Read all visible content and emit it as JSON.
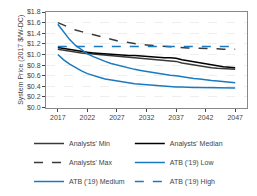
{
  "chart_data": {
    "type": "line",
    "x": [
      2017,
      2018,
      2019,
      2020,
      2021,
      2022,
      2023,
      2024,
      2025,
      2026,
      2027,
      2028,
      2029,
      2030,
      2031,
      2032,
      2033,
      2034,
      2035,
      2036,
      2037,
      2038,
      2039,
      2040,
      2041,
      2042,
      2043,
      2044,
      2045,
      2046,
      2047
    ],
    "series": [
      {
        "name": "Analysts' Min",
        "color": "#3a3a3a",
        "line_style": "solid",
        "values": [
          1.1,
          1.08,
          1.06,
          1.04,
          1.03,
          1.02,
          1.01,
          1.0,
          0.99,
          0.98,
          0.97,
          0.96,
          0.95,
          0.94,
          0.93,
          0.92,
          0.91,
          0.9,
          0.89,
          0.88,
          0.87,
          0.84,
          0.82,
          0.8,
          0.78,
          0.76,
          0.75,
          0.74,
          0.73,
          0.72,
          0.72
        ]
      },
      {
        "name": "Analysts' Median",
        "color": "black",
        "line_style": "solid",
        "values": [
          1.13,
          1.11,
          1.09,
          1.07,
          1.05,
          1.04,
          1.03,
          1.02,
          1.01,
          1.0,
          1.0,
          0.99,
          0.98,
          0.98,
          0.97,
          0.97,
          0.96,
          0.95,
          0.94,
          0.94,
          0.93,
          0.9,
          0.88,
          0.86,
          0.84,
          0.82,
          0.8,
          0.79,
          0.77,
          0.76,
          0.75
        ]
      },
      {
        "name": "Analysts' Max",
        "color": "#3a3a3a",
        "line_style": "dashed",
        "values": [
          1.6,
          1.55,
          1.5,
          1.46,
          1.43,
          1.4,
          1.37,
          1.34,
          1.31,
          1.28,
          1.26,
          1.24,
          1.22,
          1.2,
          1.19,
          1.18,
          1.17,
          1.16,
          1.15,
          1.14,
          1.13,
          1.13,
          1.12,
          1.12,
          1.12,
          1.11,
          1.11,
          1.11,
          1.1,
          1.1,
          1.1
        ]
      },
      {
        "name": "ATB ('19) Low",
        "color": "#1a7abf",
        "line_style": "solid",
        "values": [
          1.0,
          0.9,
          0.82,
          0.75,
          0.69,
          0.64,
          0.6,
          0.57,
          0.54,
          0.52,
          0.5,
          0.48,
          0.46,
          0.45,
          0.44,
          0.43,
          0.42,
          0.41,
          0.4,
          0.4,
          0.39,
          0.39,
          0.38,
          0.38,
          0.38,
          0.38,
          0.37,
          0.37,
          0.37,
          0.37,
          0.37
        ]
      },
      {
        "name": "ATB ('19) Medium",
        "color": "#1a7abf",
        "line_style": "solid",
        "values": [
          1.57,
          1.42,
          1.28,
          1.17,
          1.09,
          1.01,
          0.96,
          0.91,
          0.87,
          0.83,
          0.8,
          0.77,
          0.74,
          0.72,
          0.7,
          0.68,
          0.66,
          0.64,
          0.63,
          0.61,
          0.6,
          0.58,
          0.57,
          0.55,
          0.54,
          0.52,
          0.51,
          0.5,
          0.49,
          0.48,
          0.47
        ]
      },
      {
        "name": "ATB ('19) High",
        "color": "#1a7abf",
        "line_style": "dashed",
        "values": [
          1.15,
          1.15,
          1.15,
          1.15,
          1.15,
          1.15,
          1.15,
          1.15,
          1.15,
          1.15,
          1.15,
          1.15,
          1.15,
          1.15,
          1.15,
          1.15,
          1.15,
          1.15,
          1.15,
          1.15,
          1.15,
          1.15,
          1.15,
          1.15,
          1.15,
          1.15,
          1.15,
          1.15,
          1.15,
          1.15,
          1.15
        ]
      }
    ],
    "xlim": [
      2015,
      2049
    ],
    "xticks": [
      2017,
      2022,
      2027,
      2032,
      2037,
      2042,
      2047
    ],
    "ylim": [
      0.0,
      1.8
    ],
    "yticks": [
      {
        "value": 0.0,
        "label": "$0.0"
      },
      {
        "value": 0.2,
        "label": "$0.2"
      },
      {
        "value": 0.4,
        "label": "$0.4"
      },
      {
        "value": 0.6,
        "label": "$0.6"
      },
      {
        "value": 0.8,
        "label": "$0.8"
      },
      {
        "value": 1.0,
        "label": "$1.0"
      },
      {
        "value": 1.2,
        "label": "$1.2"
      },
      {
        "value": 1.4,
        "label": "$1.4"
      },
      {
        "value": 1.6,
        "label": "$1.6"
      },
      {
        "value": 1.8,
        "label": "$1.8"
      }
    ],
    "y_label": "System Price (2017 $/W-DC)",
    "grid": true,
    "legend": "bottom"
  }
}
